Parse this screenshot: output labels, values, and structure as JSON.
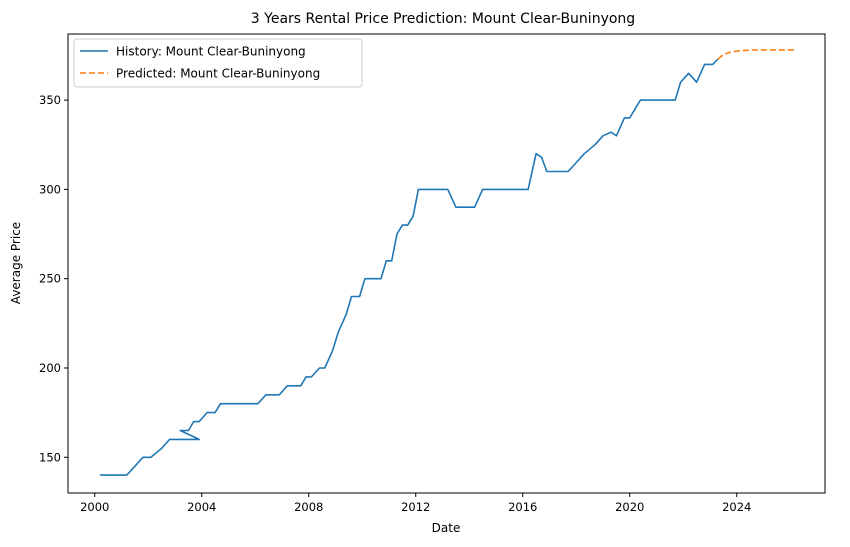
{
  "chart_data": {
    "type": "line",
    "title": "3 Years Rental Price Prediction: Mount Clear-Buninyong",
    "xlabel": "Date",
    "ylabel": "Average Price",
    "xlim": [
      1999.0,
      2027.3
    ],
    "ylim": [
      130,
      387
    ],
    "x_ticks": [
      2000,
      2004,
      2008,
      2012,
      2016,
      2020,
      2024
    ],
    "y_ticks": [
      150,
      200,
      250,
      300,
      350
    ],
    "legend_position": "top-left",
    "grid": false,
    "series": [
      {
        "name": "History: Mount Clear-Buninyong",
        "color": "#1f77b4",
        "style": "solid",
        "x": [
          2000.2,
          2000.5,
          2000.8,
          2001.2,
          2001.5,
          2001.8,
          2002.1,
          2002.5,
          2002.8,
          2003.2,
          2003.5,
          2003.9,
          2003.2,
          2003.5,
          2003.7,
          2003.9,
          2004.2,
          2004.5,
          2004.7,
          2005.0,
          2005.3,
          2005.6,
          2005.9,
          2006.1,
          2006.4,
          2006.7,
          2006.9,
          2007.2,
          2007.5,
          2007.7,
          2007.9,
          2008.1,
          2008.4,
          2008.6,
          2008.9,
          2009.1,
          2009.4,
          2009.6,
          2009.9,
          2010.1,
          2010.5,
          2010.7,
          2010.9,
          2011.1,
          2011.3,
          2011.5,
          2011.7,
          2011.9,
          2012.1,
          2012.5,
          2012.9,
          2013.2,
          2013.5,
          2013.9,
          2014.2,
          2014.5,
          2014.9,
          2015.2,
          2015.5,
          2015.9,
          2016.2,
          2016.5,
          2016.7,
          2016.9,
          2017.2,
          2017.5,
          2017.7,
          2018.0,
          2018.3,
          2018.7,
          2019.0,
          2019.3,
          2019.5,
          2019.8,
          2020.0,
          2020.4,
          2020.8,
          2021.1,
          2021.5,
          2021.7,
          2021.9,
          2022.2,
          2022.5,
          2022.8,
          2023.1,
          2023.3
        ],
        "y": [
          140,
          140,
          140,
          140,
          145,
          150,
          150,
          155,
          160,
          160,
          160,
          160,
          165,
          165,
          170,
          170,
          175,
          175,
          180,
          180,
          180,
          180,
          180,
          180,
          185,
          185,
          185,
          190,
          190,
          190,
          195,
          195,
          200,
          200,
          210,
          220,
          230,
          240,
          240,
          250,
          250,
          250,
          260,
          260,
          275,
          280,
          280,
          285,
          300,
          300,
          300,
          300,
          290,
          290,
          290,
          300,
          300,
          300,
          300,
          300,
          300,
          320,
          318,
          310,
          310,
          310,
          310,
          315,
          320,
          325,
          330,
          332,
          330,
          340,
          340,
          350,
          350,
          350,
          350,
          350,
          360,
          365,
          360,
          370,
          370,
          373
        ]
      },
      {
        "name": "Predicted: Mount Clear-Buninyong",
        "color": "#ff7f0e",
        "style": "dashed",
        "x": [
          2023.3,
          2023.5,
          2023.7,
          2024.0,
          2024.3,
          2024.6,
          2025.0,
          2025.4,
          2025.8,
          2026.2
        ],
        "y": [
          373,
          375.5,
          376.6,
          377.4,
          377.8,
          378.0,
          378.1,
          378.1,
          378.1,
          378.1
        ]
      }
    ]
  }
}
